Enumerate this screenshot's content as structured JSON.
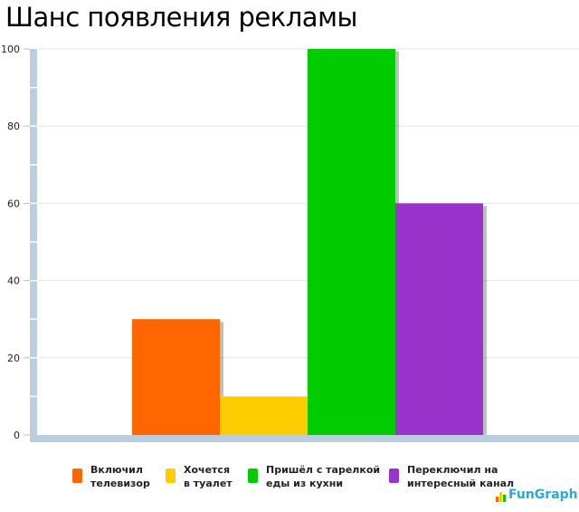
{
  "chart_data": {
    "type": "bar",
    "title": "Шанс появления рекламы",
    "categories": [
      "Включил телевизор",
      "Хочется в туалет",
      "Пришёл с тарелкой еды из кухни",
      "Переключил на интересный канал"
    ],
    "legend_lines": [
      [
        "Включил",
        "телевизор"
      ],
      [
        "Хочется",
        "в туалет"
      ],
      [
        "Пришёл с тарелкой",
        "еды из кухни"
      ],
      [
        "Переключил на",
        "интересный канал"
      ]
    ],
    "values": [
      30,
      10,
      100,
      60
    ],
    "colors": [
      "#ff6600",
      "#ffcc00",
      "#00cc00",
      "#9933cc"
    ],
    "ylim": [
      0,
      100
    ],
    "yticks": [
      "0",
      "20",
      "40",
      "60",
      "80",
      "100"
    ],
    "grid": true,
    "legend_position": "bottom",
    "xlabel": "",
    "ylabel": ""
  },
  "watermark": "FunGraph"
}
